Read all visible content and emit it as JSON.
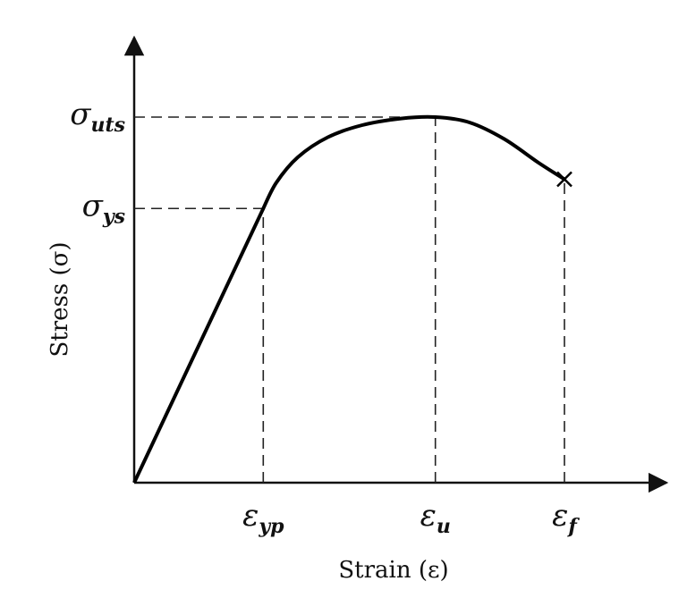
{
  "chart_data": {
    "type": "line",
    "title": "",
    "xlabel": "Strain (ε)",
    "ylabel": "Stress (σ)",
    "grid": false,
    "legend": "none",
    "axis_ticks_numeric": false,
    "x_marks": [
      {
        "symbol": "ε",
        "sub": "yp",
        "x": 0.3
      },
      {
        "symbol": "ε",
        "sub": "u",
        "x": 0.7
      },
      {
        "symbol": "ε",
        "sub": "f",
        "x": 1.0
      }
    ],
    "y_marks": [
      {
        "symbol": "σ",
        "sub": "uts",
        "y": 1.0
      },
      {
        "symbol": "σ",
        "sub": "ys",
        "y": 0.75
      }
    ],
    "series": [
      {
        "elastic": [
          [
            0,
            0
          ],
          [
            0.3,
            0.75
          ]
        ],
        "plastic": [
          [
            0.3,
            0.75
          ],
          [
            0.33,
            0.82
          ],
          [
            0.38,
            0.89
          ],
          [
            0.45,
            0.945
          ],
          [
            0.53,
            0.978
          ],
          [
            0.62,
            0.996
          ],
          [
            0.7,
            1.0
          ],
          [
            0.78,
            0.985
          ],
          [
            0.86,
            0.94
          ],
          [
            0.94,
            0.875
          ],
          [
            1.0,
            0.83
          ]
        ],
        "fracture_point": [
          1.0,
          0.83
        ]
      }
    ],
    "colors": {
      "curve": "#000000",
      "axis": "#111111",
      "dash": "#222222"
    }
  }
}
